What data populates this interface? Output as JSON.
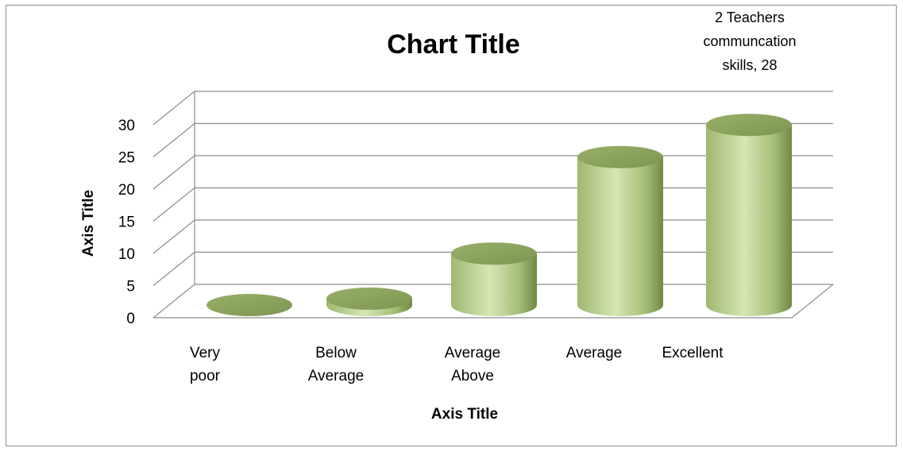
{
  "chart_data": {
    "type": "bar",
    "style": "3d-cylinder",
    "title": "Chart Title",
    "xlabel": "Axis Title",
    "ylabel": "Axis Title",
    "ylim": [
      0,
      30
    ],
    "yticks": [
      0,
      5,
      10,
      15,
      20,
      25,
      30
    ],
    "grid": true,
    "categories": [
      [
        "Very",
        "poor"
      ],
      [
        "Below",
        "Average"
      ],
      [
        "Average",
        "Above"
      ],
      [
        "Average"
      ],
      [
        "Excellent"
      ]
    ],
    "series": [
      {
        "values": [
          0,
          1,
          8,
          23,
          28
        ],
        "color": "#9bbb59"
      }
    ],
    "data_label": [
      "2 Teachers",
      "communcation",
      "skills, 28"
    ]
  }
}
